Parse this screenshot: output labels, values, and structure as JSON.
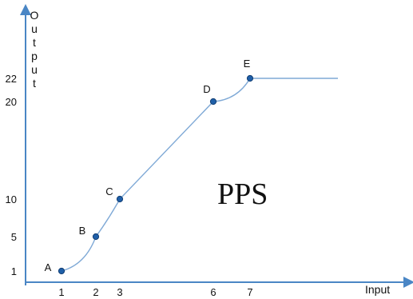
{
  "chart_data": {
    "type": "line",
    "title": "",
    "xlabel": "Input",
    "ylabel": "Output",
    "x_ticks": [
      "1",
      "2",
      "3",
      "6",
      "7"
    ],
    "y_ticks": [
      "1",
      "5",
      "10",
      "20",
      "22"
    ],
    "series": [
      {
        "points": [
          {
            "label": "A",
            "x": 1,
            "y": 1
          },
          {
            "label": "B",
            "x": 2,
            "y": 5
          },
          {
            "label": "C",
            "x": 3,
            "y": 10
          },
          {
            "label": "D",
            "x": 6,
            "y": 20
          },
          {
            "label": "E",
            "x": 7,
            "y": 22
          }
        ],
        "flat_tail_to_x": 9.5
      }
    ],
    "annotation": "PPS",
    "grid": false,
    "colors": {
      "axis": "#4a86c5",
      "line": "#7fa9d6",
      "marker_fill": "#1f5fa8",
      "marker_stroke": "#123e73"
    }
  }
}
